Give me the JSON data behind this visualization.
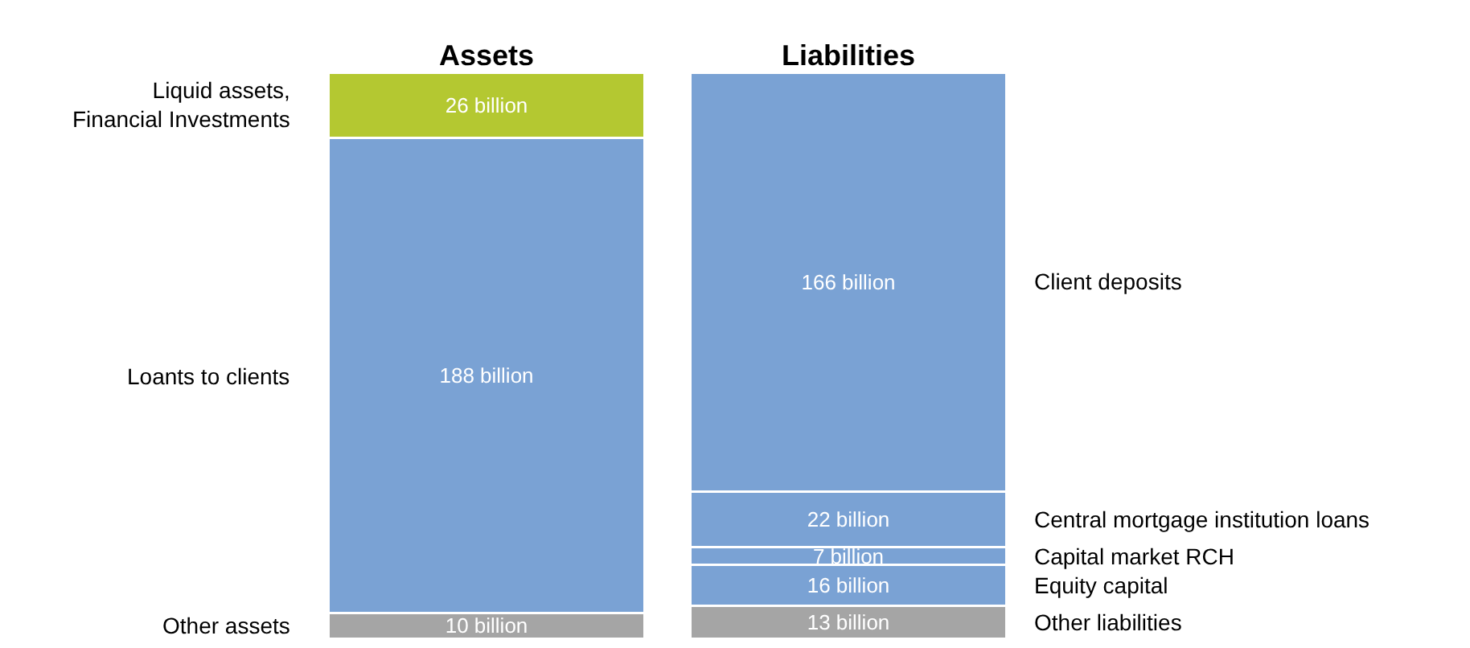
{
  "chart_data": {
    "type": "bar",
    "stacked": true,
    "categories": [
      "Assets",
      "Liabilities"
    ],
    "tick_labels": "x",
    "legend": false,
    "series": [
      {
        "name": "Other assets",
        "color": "#a5a5a5",
        "values": [
          10,
          null
        ],
        "value_labels": [
          "10 billion",
          null
        ]
      },
      {
        "name": "Loants to clients",
        "color": "#7aa2d4",
        "values": [
          188,
          null
        ],
        "value_labels": [
          "188 billion",
          null
        ]
      },
      {
        "name": "Liquid assets,\nFinancial Investments",
        "color": "#b4c831",
        "values": [
          26,
          null
        ],
        "value_labels": [
          "26 billion",
          null
        ]
      },
      {
        "name": "Other liabilities",
        "color": "#a5a5a5",
        "values": [
          null,
          13
        ],
        "value_labels": [
          null,
          "13 billion"
        ]
      },
      {
        "name": "Equity capital",
        "color": "#7aa2d4",
        "values": [
          null,
          16
        ],
        "value_labels": [
          null,
          "16 billion"
        ]
      },
      {
        "name": "Capital market RCH",
        "color": "#7aa2d4",
        "values": [
          null,
          7
        ],
        "value_labels": [
          null,
          "7 billion"
        ]
      },
      {
        "name": "Central mortgage institution loans",
        "color": "#7aa2d4",
        "values": [
          null,
          22
        ],
        "value_labels": [
          null,
          "22 billion"
        ]
      },
      {
        "name": "Client deposits",
        "color": "#7aa2d4",
        "values": [
          null,
          166
        ],
        "value_labels": [
          null,
          "166 billion"
        ]
      }
    ]
  }
}
